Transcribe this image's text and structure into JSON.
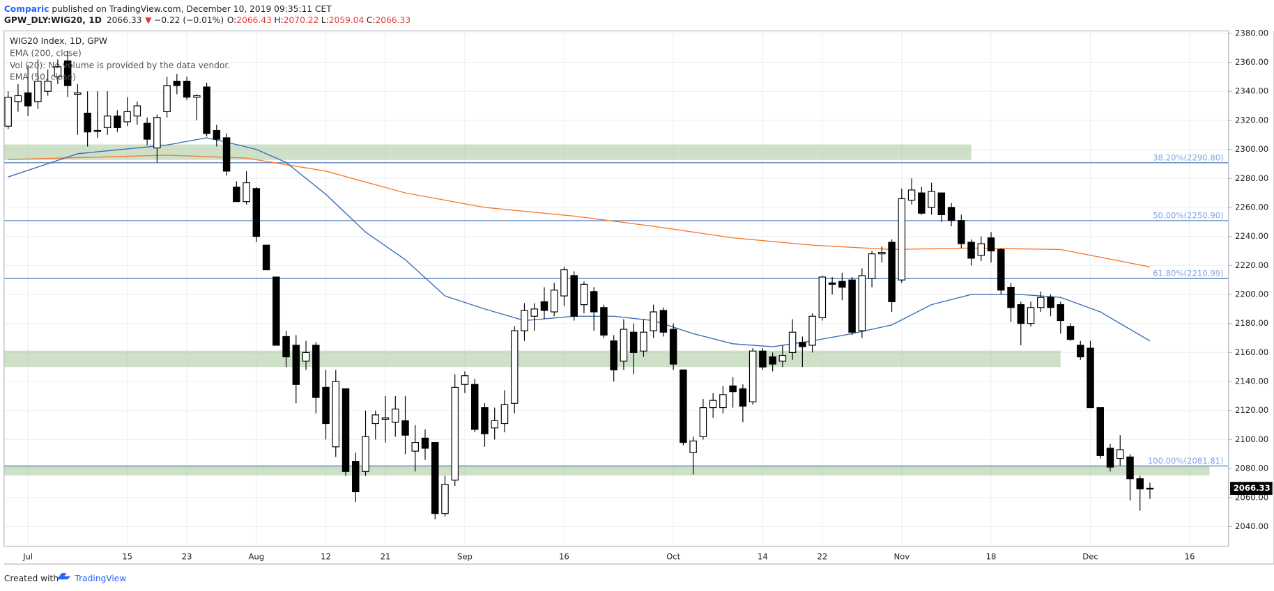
{
  "header": {
    "author": "Comparic",
    "published": " published on TradingView.com, December 10, 2019 09:35:11 CET",
    "symbol": "GPW_DLY:WIG20, 1D",
    "price": "2066.33",
    "arrow": "▼",
    "change": "−0.22 (−0.01%)",
    "o_label": "O:",
    "o": "2066.43",
    "h_label": "H:",
    "h": "2070.22",
    "l_label": "L:",
    "l": "2059.04",
    "c_label": "C:",
    "c": "2066.33"
  },
  "footer": {
    "created": "Created with",
    "brand": "TradingView"
  },
  "chart_data": {
    "type": "candlestick",
    "title": "WIG20 Index, 1D, GPW",
    "volume_note": "Vol (20): No volume is provided by the data vendor.",
    "categories": [
      null,
      null,
      "Jul",
      null,
      null,
      null,
      null,
      null,
      null,
      null,
      null,
      null,
      "15",
      null,
      null,
      null,
      null,
      null,
      "23",
      null,
      null,
      null,
      null,
      null,
      null,
      "Aug",
      null,
      null,
      null,
      null,
      null,
      null,
      "12",
      null,
      null,
      null,
      null,
      null,
      "21",
      null,
      null,
      null,
      null,
      null,
      null,
      null,
      "Sep",
      null,
      null,
      null,
      null,
      null,
      null,
      null,
      null,
      null,
      "16",
      null,
      null,
      null,
      null,
      null,
      null,
      null,
      null,
      null,
      null,
      "Oct",
      null,
      null,
      null,
      null,
      null,
      null,
      null,
      null,
      "14",
      null,
      null,
      null,
      null,
      null,
      "22",
      null,
      null,
      null,
      null,
      null,
      null,
      null,
      "Nov",
      null,
      null,
      null,
      null,
      null,
      null,
      null,
      null,
      "18",
      null,
      null,
      null,
      null,
      null,
      null,
      null,
      null,
      null,
      "Dec",
      null,
      null,
      null,
      null,
      null,
      null,
      null,
      null,
      null,
      "16",
      null,
      null,
      null
    ],
    "open": [
      2316,
      2333,
      2339,
      2333,
      2340,
      2350,
      2361,
      2338,
      2325,
      2313,
      2315,
      2323,
      2319,
      2323,
      2318,
      2301,
      2326,
      2347,
      2347,
      2336,
      2343,
      2313,
      2308,
      2274,
      2264,
      2273,
      2234,
      2212,
      2171,
      2165,
      2154,
      2165,
      2136,
      2095,
      2135,
      2085,
      2078,
      2111,
      2114,
      2112,
      2113,
      2092,
      2101,
      2098,
      2049,
      2072,
      2138,
      2138,
      2122,
      2108,
      2111,
      2125,
      2175,
      2185,
      2195,
      2188,
      2199,
      2213,
      2193,
      2202,
      2191,
      2168,
      2154,
      2174,
      2161,
      2175,
      2189,
      2176,
      2148,
      2091,
      2102,
      2122,
      2122,
      2137,
      2135,
      2126,
      2161,
      2157,
      2154,
      2160,
      2167,
      2165,
      2184,
      2208,
      2209,
      2210,
      2175,
      2211,
      2228,
      2236,
      2210,
      2265,
      2270,
      2260,
      2270,
      2260,
      2251,
      2236,
      2227,
      2239,
      2231,
      2205,
      2193,
      2180,
      2191,
      2198,
      2193,
      2178,
      2165,
      2163,
      2122,
      2094,
      2087,
      2088,
      2073,
      2066.43,
      null,
      null,
      null,
      null,
      null,
      null,
      null
    ],
    "high": [
      2340,
      2345,
      2358,
      2362,
      2355,
      2362,
      2368,
      2345,
      2340,
      2340,
      2340,
      2327,
      2336,
      2333,
      2322,
      2324,
      2350,
      2352,
      2350,
      2338,
      2346,
      2317,
      2311,
      2278,
      2285,
      2274,
      2234,
      2212,
      2175,
      2172,
      2168,
      2167,
      2148,
      2148,
      2135,
      2091,
      2120,
      2120,
      2130,
      2130,
      2130,
      2110,
      2107,
      2098,
      2075,
      2145,
      2147,
      2142,
      2125,
      2122,
      2134,
      2178,
      2194,
      2194,
      2205,
      2208,
      2219,
      2216,
      2209,
      2205,
      2193,
      2172,
      2183,
      2180,
      2183,
      2193,
      2191,
      2180,
      2148,
      2102,
      2128,
      2132,
      2137,
      2143,
      2138,
      2163,
      2163,
      2160,
      2165,
      2183,
      2171,
      2187,
      2213,
      2212,
      2215,
      2212,
      2218,
      2230,
      2233,
      2238,
      2273,
      2280,
      2274,
      2277,
      2270,
      2263,
      2255,
      2238,
      2240,
      2243,
      2232,
      2208,
      2195,
      2195,
      2202,
      2200,
      2195,
      2180,
      2168,
      2168,
      2122,
      2097,
      2103,
      2090,
      2075,
      2070.22,
      null,
      null,
      null,
      null,
      null,
      null,
      null
    ],
    "low": [
      2314,
      2326,
      2323,
      2328,
      2337,
      2345,
      2336,
      2310,
      2302,
      2308,
      2310,
      2312,
      2316,
      2317,
      2303,
      2291,
      2322,
      2338,
      2334,
      2320,
      2309,
      2302,
      2282,
      2264,
      2262,
      2236,
      2217,
      2165,
      2150,
      2125,
      2148,
      2118,
      2100,
      2088,
      2075,
      2057,
      2075,
      2100,
      2098,
      2102,
      2090,
      2078,
      2086,
      2045,
      2047,
      2068,
      2132,
      2105,
      2095,
      2100,
      2105,
      2118,
      2168,
      2175,
      2183,
      2185,
      2192,
      2182,
      2187,
      2175,
      2170,
      2140,
      2148,
      2145,
      2157,
      2170,
      2171,
      2148,
      2096,
      2076,
      2100,
      2115,
      2118,
      2122,
      2112,
      2124,
      2148,
      2147,
      2150,
      2155,
      2150,
      2160,
      2182,
      2200,
      2196,
      2172,
      2170,
      2205,
      2222,
      2188,
      2208,
      2262,
      2255,
      2255,
      2250,
      2247,
      2232,
      2220,
      2223,
      2222,
      2200,
      2181,
      2165,
      2178,
      2188,
      2185,
      2173,
      2168,
      2155,
      2122,
      2087,
      2078,
      2082,
      2058,
      2051,
      2059.04,
      null,
      null,
      null,
      null,
      null,
      null,
      null
    ],
    "close": [
      2336,
      2337,
      2330,
      2347,
      2347,
      2357,
      2344,
      2339,
      2312,
      2313,
      2323,
      2315,
      2326,
      2330,
      2307,
      2322,
      2344,
      2344,
      2336,
      2337,
      2311,
      2307,
      2285,
      2264,
      2277,
      2240,
      2217,
      2165,
      2157,
      2138,
      2160,
      2129,
      2111,
      2140,
      2078,
      2064,
      2102,
      2117,
      2115,
      2121,
      2103,
      2098,
      2094,
      2049,
      2069,
      2136,
      2144,
      2107,
      2104,
      2113,
      2124,
      2175,
      2189,
      2190,
      2189,
      2203,
      2217,
      2185,
      2207,
      2188,
      2172,
      2148,
      2176,
      2160,
      2174,
      2188,
      2174,
      2152,
      2098,
      2099,
      2122,
      2127,
      2131,
      2133,
      2123,
      2161,
      2150,
      2152,
      2158,
      2174,
      2164,
      2185,
      2212,
      2207,
      2205,
      2174,
      2213,
      2228,
      2229,
      2195,
      2266,
      2272,
      2256,
      2271,
      2255,
      2251,
      2235,
      2225,
      2235,
      2230,
      2203,
      2191,
      2180,
      2191,
      2198,
      2191,
      2182,
      2169,
      2157,
      2122,
      2089,
      2081,
      2093,
      2073,
      2066,
      2066.33,
      null,
      null,
      null,
      null,
      null,
      null,
      null
    ],
    "up_color": "#ffffff",
    "down_color": "#000000",
    "series": [
      {
        "name": "EMA (200, close)",
        "color": "#f57c32",
        "x": [
          0,
          16,
          24,
          32,
          40,
          48,
          57,
          65,
          73,
          81,
          89,
          97,
          106,
          115
        ],
        "values": [
          2293,
          2296,
          2294,
          2285,
          2270,
          2260,
          2254,
          2247,
          2239,
          2234,
          2231,
          2232,
          2231,
          2219
        ]
      },
      {
        "name": "EMA (50, close)",
        "color": "#3d6fb6",
        "x": [
          0,
          7,
          16,
          20,
          22,
          25,
          28,
          32,
          36,
          40,
          44,
          48,
          52,
          57,
          61,
          65,
          69,
          73,
          77,
          81,
          85,
          89,
          93,
          97,
          102,
          106,
          110,
          115
        ],
        "values": [
          2281,
          2297,
          2303,
          2308,
          2305,
          2300,
          2291,
          2269,
          2243,
          2224,
          2199,
          2190,
          2182,
          2185,
          2185,
          2182,
          2173,
          2166,
          2164,
          2168,
          2173,
          2179,
          2193,
          2200,
          2200,
          2198,
          2188,
          2168
        ]
      }
    ],
    "levels": [
      {
        "value": 2290.8,
        "label": "38.20%(2290.80)"
      },
      {
        "value": 2250.9,
        "label": "50.00%(2250.90)"
      },
      {
        "value": 2210.99,
        "label": "61.80%(2210.99)"
      },
      {
        "value": 2081.81,
        "label": "100.00%(2081.81)"
      }
    ],
    "level_color": "#3d6fb6",
    "zones": [
      {
        "from": 2292.7,
        "to": 2303.4,
        "end": 97
      },
      {
        "from": 2150,
        "to": 2161.3,
        "end": 106
      },
      {
        "from": 2075.2,
        "to": 2081.9,
        "end": 121
      }
    ],
    "zone_color": "#a5c79a",
    "last_price": 2066.33,
    "ylim": [
      2026.5,
      2381.7
    ],
    "yticks": [
      {
        "value": 2040,
        "label": "2040.00"
      },
      {
        "value": 2060,
        "label": "2060.00"
      },
      {
        "value": 2080,
        "label": "2080.00"
      },
      {
        "value": 2100,
        "label": "2100.00"
      },
      {
        "value": 2120,
        "label": "2120.00"
      },
      {
        "value": 2140,
        "label": "2140.00"
      },
      {
        "value": 2160,
        "label": "2160.00"
      },
      {
        "value": 2180,
        "label": "2180.00"
      },
      {
        "value": 2200,
        "label": "2200.00"
      },
      {
        "value": 2220,
        "label": "2220.00"
      },
      {
        "value": 2240,
        "label": "2240.00"
      },
      {
        "value": 2260,
        "label": "2260.00"
      },
      {
        "value": 2280,
        "label": "2280.00"
      },
      {
        "value": 2300,
        "label": "2300.00"
      },
      {
        "value": 2320,
        "label": "2320.00"
      },
      {
        "value": 2340,
        "label": "2340.00"
      },
      {
        "value": 2360,
        "label": "2360.00"
      },
      {
        "value": 2380,
        "label": "2380.00"
      }
    ],
    "grid": true
  }
}
